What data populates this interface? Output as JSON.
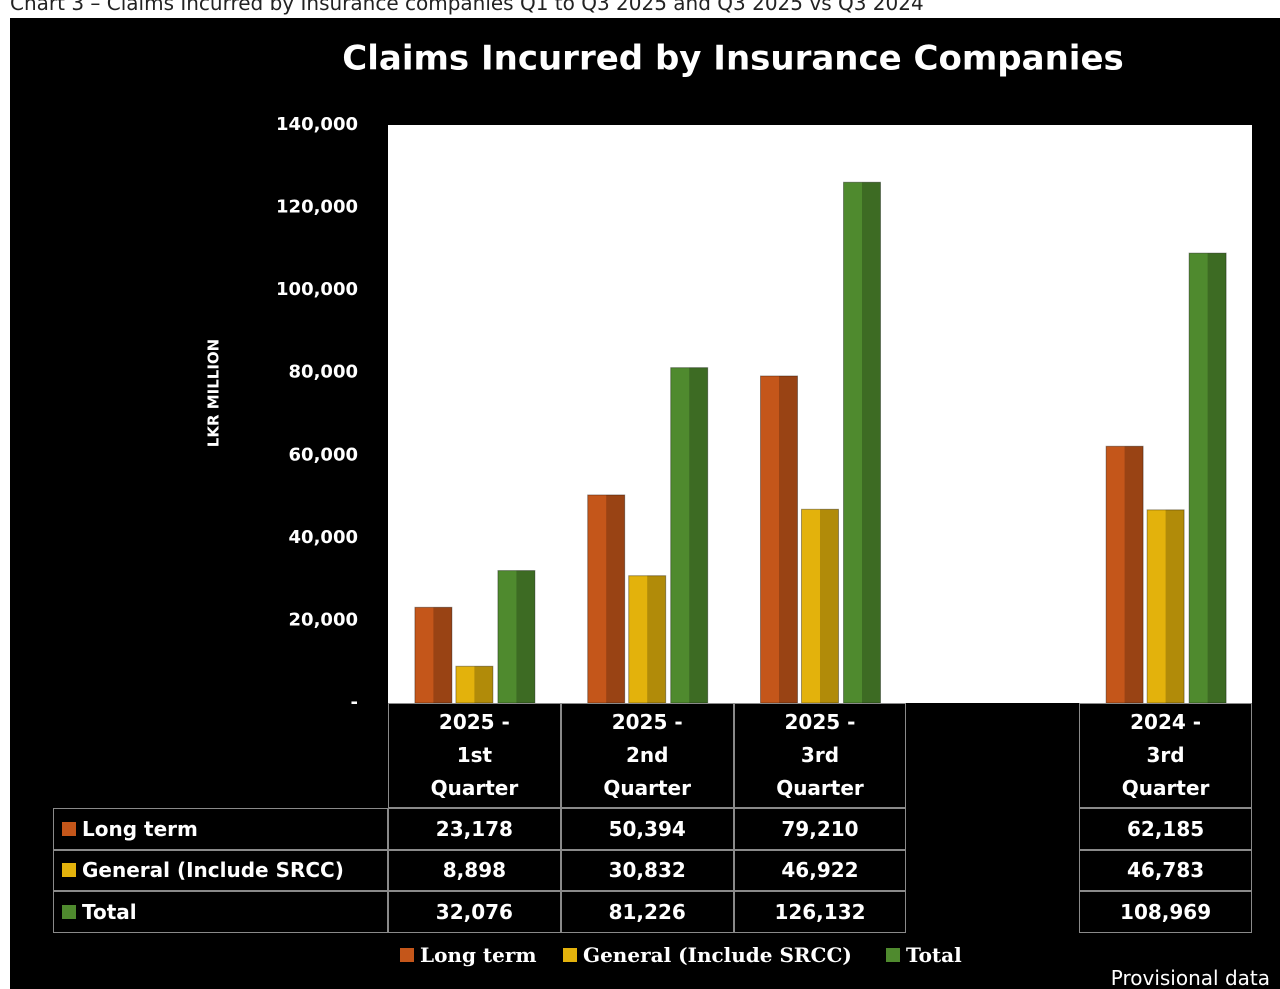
{
  "caption": "Chart 3 – Claims Incurred by Insurance companies Q1 to Q3 2025 and Q3 2025 vs Q3 2024",
  "note": "Provisional data",
  "chart_data": {
    "type": "bar",
    "title": "Claims Incurred by Insurance Companies",
    "y_label": "LKR MILLION",
    "categories": [
      "2025 - 1st Quarter",
      "2025 - 2nd Quarter",
      "2025 - 3rd Quarter",
      null,
      "2024 - 3rd Quarter"
    ],
    "series": [
      {
        "name": "Long term",
        "color": "#c4561a",
        "values": [
          23178,
          50394,
          79210,
          null,
          62185
        ],
        "value_labels": [
          "23,178",
          "50,394",
          "79,210",
          null,
          "62,185"
        ]
      },
      {
        "name": "General (Include SRCC)",
        "color": "#e3b20c",
        "values": [
          8898,
          30832,
          46922,
          null,
          46783
        ],
        "value_labels": [
          "8,898",
          "30,832",
          "46,922",
          null,
          "46,783"
        ]
      },
      {
        "name": "Total",
        "color": "#4f8a2e",
        "values": [
          32076,
          81226,
          126132,
          null,
          108969
        ],
        "value_labels": [
          "32,076",
          "81,226",
          "126,132",
          null,
          "108,969"
        ]
      }
    ],
    "ylim": [
      0,
      140000
    ],
    "yticks": [
      {
        "value": 0,
        "label": "-"
      },
      {
        "value": 20000,
        "label": "20,000"
      },
      {
        "value": 40000,
        "label": "40,000"
      },
      {
        "value": 60000,
        "label": "60,000"
      },
      {
        "value": 80000,
        "label": "80,000"
      },
      {
        "value": 100000,
        "label": "100,000"
      },
      {
        "value": 120000,
        "label": "120,000"
      },
      {
        "value": 140000,
        "label": "140,000"
      }
    ],
    "grid": false
  }
}
